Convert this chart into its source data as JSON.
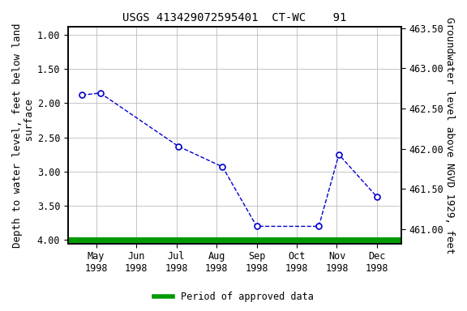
{
  "title": "USGS 413429072595401  CT-WC    91",
  "ylabel_left": "Depth to water level, feet below land\n surface",
  "ylabel_right": "Groundwater level above NGVD 1929, feet",
  "ylim_left": [
    4.05,
    0.88
  ],
  "ylim_right": [
    460.82,
    463.52
  ],
  "yticks_left": [
    1.0,
    1.5,
    2.0,
    2.5,
    3.0,
    3.5,
    4.0
  ],
  "yticks_right": [
    463.5,
    463.0,
    462.5,
    462.0,
    461.5,
    461.0
  ],
  "tick_month_labels": [
    "May\n1998",
    "Jun\n1998",
    "Jul\n1998",
    "Aug\n1998",
    "Sep\n1998",
    "Oct\n1998",
    "Nov\n1998",
    "Dec\n1998"
  ],
  "tick_month_x": [
    4,
    5,
    6,
    7,
    8,
    9,
    10,
    11
  ],
  "data_x": [
    3.65,
    4.1,
    6.05,
    7.15,
    8.0,
    9.55,
    10.05,
    11.0
  ],
  "data_y_depth": [
    1.88,
    1.85,
    2.63,
    2.93,
    3.8,
    3.8,
    2.75,
    3.37
  ],
  "xlim": [
    3.3,
    11.6
  ],
  "line_color": "#0000cc",
  "marker_facecolor": "white",
  "marker_edgecolor": "#0000cc",
  "bg_color": "#ffffff",
  "grid_color": "#bbbbbb",
  "green_line_color": "#009900",
  "legend_label": "Period of approved data",
  "title_fontsize": 10,
  "axis_label_fontsize": 9,
  "tick_fontsize": 8.5
}
